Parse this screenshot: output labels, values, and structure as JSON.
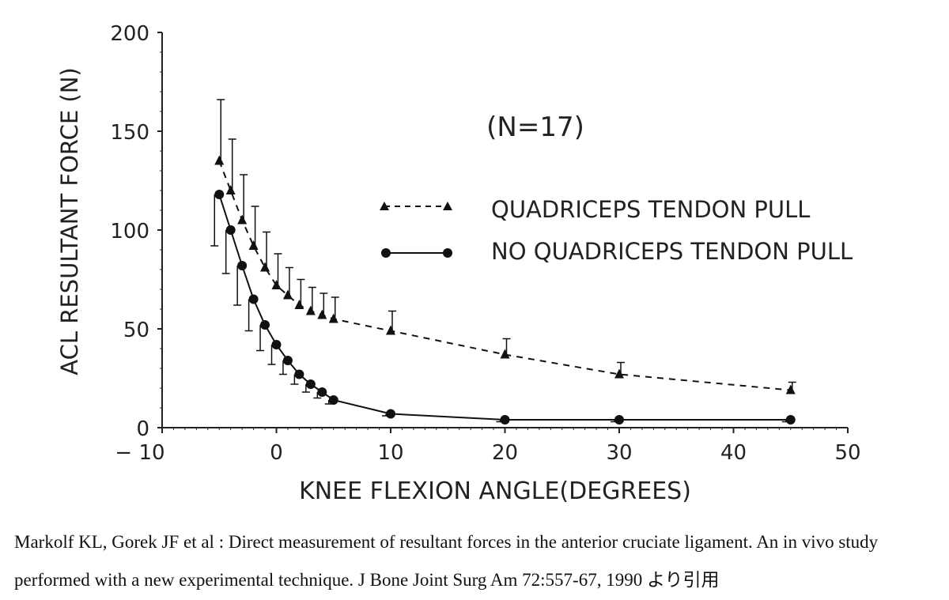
{
  "chart_data": {
    "type": "line",
    "annotation": "(N=17)",
    "xlabel": "KNEE FLEXION ANGLE(DEGREES)",
    "ylabel": "ACL RESULTANT FORCE (N)",
    "xlim": [
      -10,
      50
    ],
    "ylim": [
      0,
      200
    ],
    "xticks": [
      -10,
      0,
      10,
      20,
      30,
      40,
      50
    ],
    "xtick_labels": [
      "− 10",
      "0",
      "10",
      "20",
      "30",
      "40",
      "50"
    ],
    "yticks": [
      0,
      50,
      100,
      150,
      200
    ],
    "ytick_labels": [
      "0",
      "50",
      "100",
      "150",
      "200"
    ],
    "legend_position": "upper-right",
    "series": [
      {
        "name": "QUADRICEPS TENDON PULL",
        "marker": "triangle",
        "line": "dashed",
        "x": [
          -5,
          -4,
          -3,
          -2,
          -1,
          0,
          1,
          2,
          3,
          4,
          5,
          10,
          20,
          30,
          45
        ],
        "y": [
          135,
          120,
          105,
          92,
          81,
          72,
          67,
          62,
          59,
          57,
          55,
          49,
          37,
          27,
          19
        ],
        "error": [
          31,
          26,
          23,
          20,
          18,
          16,
          14,
          13,
          12,
          11,
          11,
          10,
          8,
          6,
          4
        ]
      },
      {
        "name": "NO QUADRICEPS TENDON PULL",
        "marker": "circle",
        "line": "solid",
        "x": [
          -5,
          -4,
          -3,
          -2,
          -1,
          0,
          1,
          2,
          3,
          4,
          5,
          10,
          20,
          30,
          45
        ],
        "y": [
          118,
          100,
          82,
          65,
          52,
          42,
          34,
          27,
          22,
          18,
          14,
          7,
          4,
          4,
          4
        ],
        "error": [
          26,
          22,
          20,
          16,
          13,
          10,
          7,
          5,
          4,
          3,
          2,
          1,
          1,
          1,
          1
        ]
      }
    ]
  },
  "caption": {
    "text": "Markolf KL, Gorek JF et al : Direct measurement of resultant forces in the anterior cruciate ligament. An in vivo study performed with a new experimental technique. J Bone Joint Surg Am 72:557-67, 1990 より引用"
  }
}
